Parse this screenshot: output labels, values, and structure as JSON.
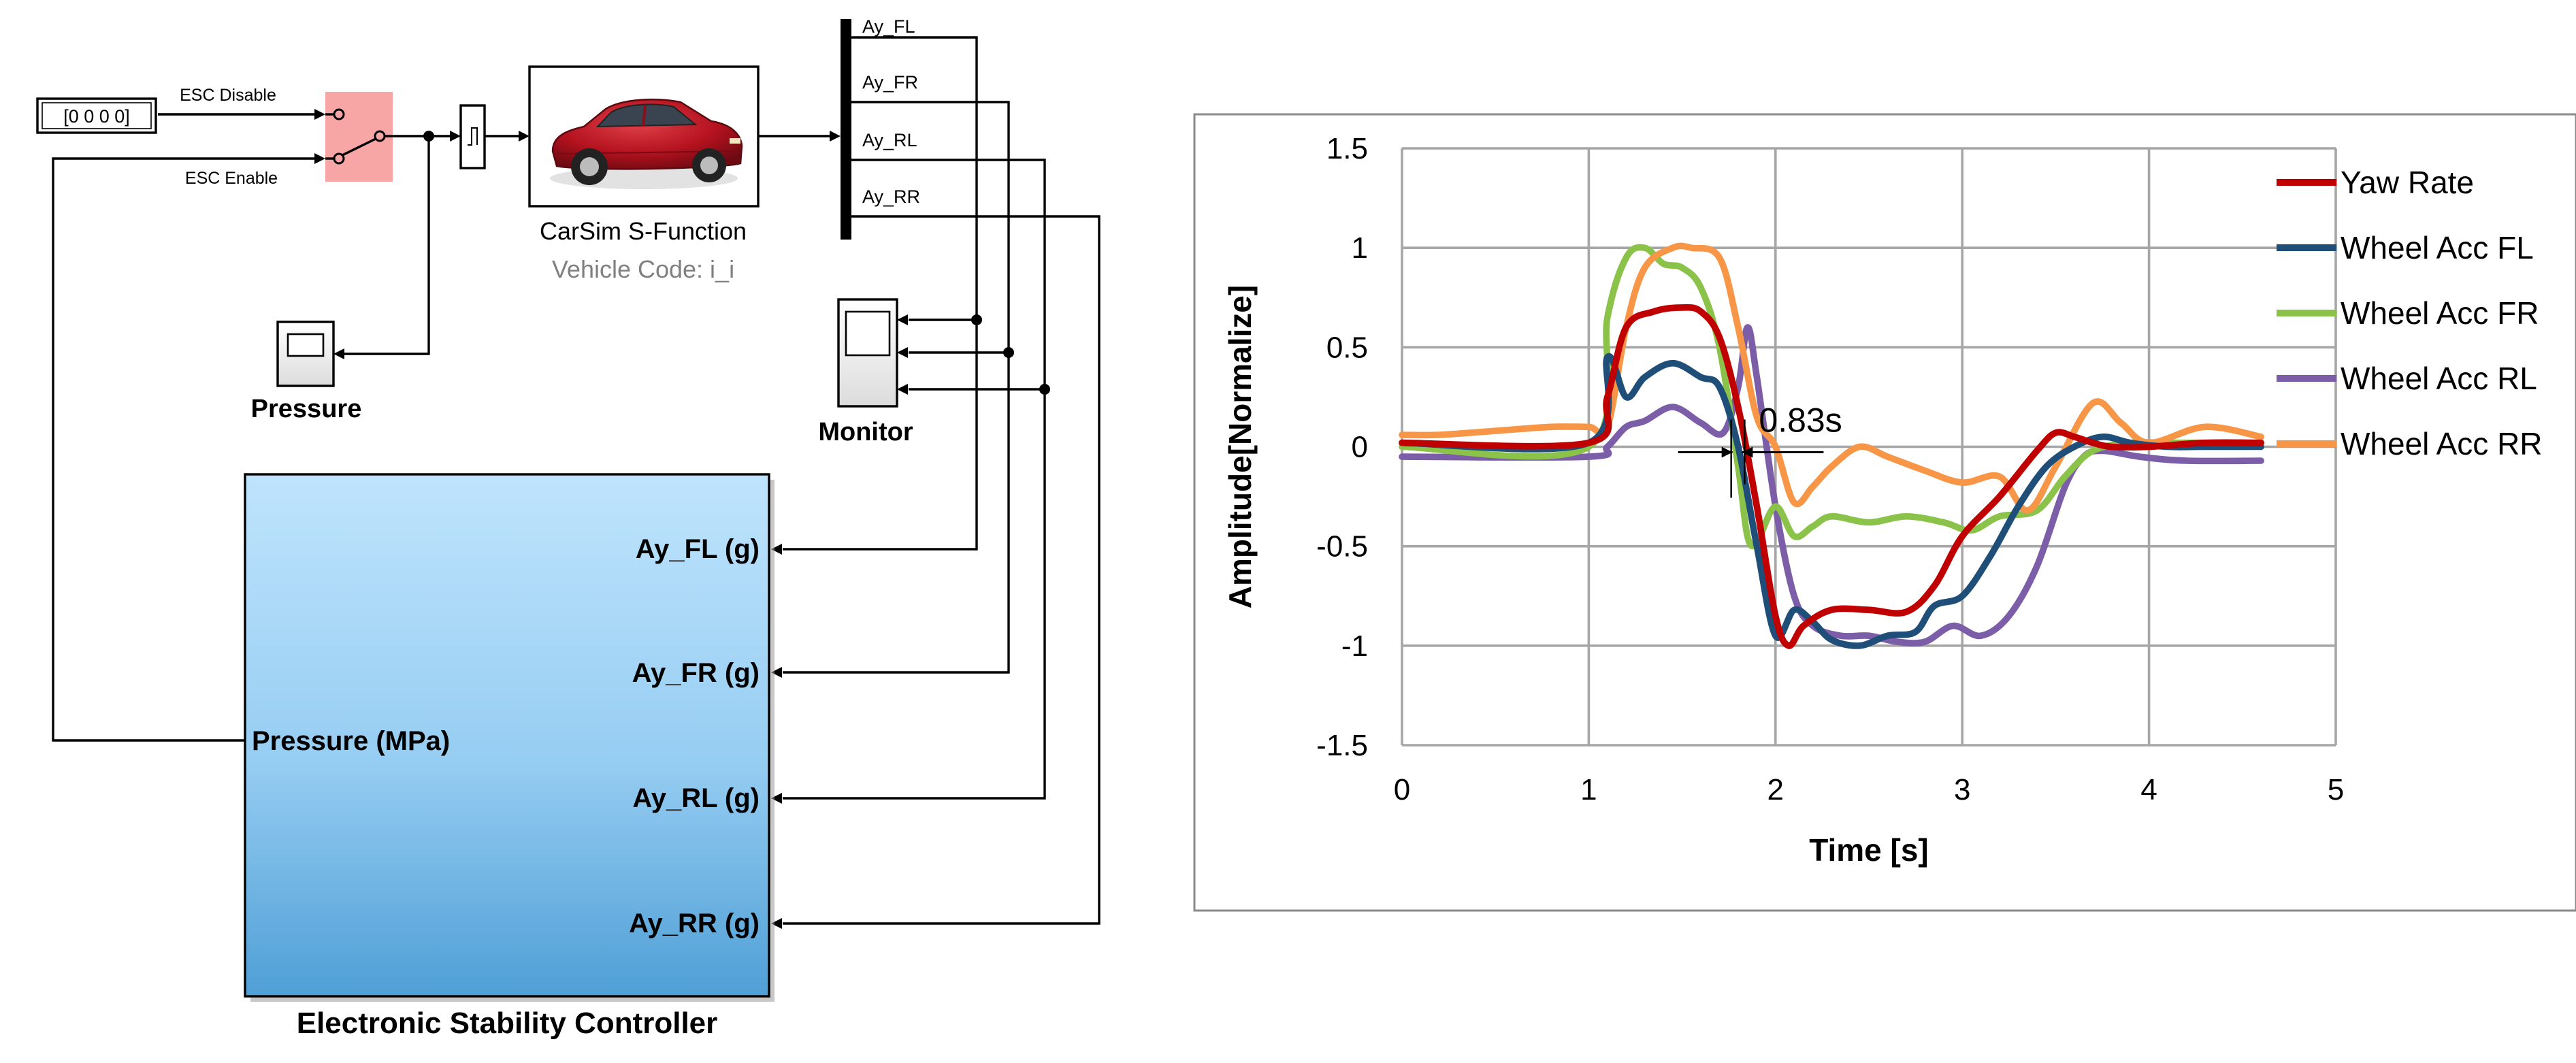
{
  "simulink": {
    "constant_block": {
      "value": "[0 0 0 0]"
    },
    "switch_inputs": {
      "disable_label": "ESC Disable",
      "enable_label": "ESC Enable"
    },
    "carsim_block": {
      "title": "CarSim S-Function",
      "subtitle": "Vehicle Code: i_i"
    },
    "mux_outputs": [
      "Ay_FL",
      "Ay_FR",
      "Ay_RL",
      "Ay_RR"
    ],
    "pressure_scope": {
      "label": "Pressure"
    },
    "monitor_scope": {
      "label": "Monitor"
    },
    "controller": {
      "title": "Electronic Stability Controller",
      "input_ports": [
        "Ay_FL (g)",
        "Ay_FR (g)",
        "Ay_RL (g)",
        "Ay_RR (g)"
      ],
      "output_port": "Pressure (MPa)"
    },
    "colors": {
      "switch_fill": "#f7a5a5",
      "controller_top": "#bfe4fd",
      "controller_bottom": "#4f9fd6",
      "car_body": "#b3121e"
    }
  },
  "chart_data": {
    "type": "line",
    "title": "",
    "xlabel": "Time [s]",
    "ylabel": "Amplitude[Normalize]",
    "xlim": [
      0,
      5
    ],
    "ylim": [
      -1.5,
      1.5
    ],
    "x_ticks": [
      "0",
      "1",
      "2",
      "3",
      "4",
      "5"
    ],
    "y_ticks": [
      "1.5",
      "1",
      "0.5",
      "0",
      "-0.5",
      "-1",
      "-1.5"
    ],
    "grid": true,
    "legend_position": "right",
    "annotation": {
      "text": "0.83s",
      "x_start": 1.77,
      "x_end": 1.82,
      "y": 0
    },
    "series": [
      {
        "name": "Yaw Rate",
        "color": "#c00000",
        "x": [
          0,
          1.0,
          1.1,
          1.2,
          1.35,
          1.5,
          1.6,
          1.7,
          1.8,
          1.9,
          2.0,
          2.07,
          2.15,
          2.3,
          2.5,
          2.7,
          2.85,
          3.0,
          3.2,
          3.4,
          3.5,
          3.6,
          3.7,
          3.8,
          4.0,
          4.3,
          4.6
        ],
        "values": [
          0.02,
          0.02,
          0.25,
          0.6,
          0.68,
          0.7,
          0.68,
          0.55,
          0.2,
          -0.3,
          -0.85,
          -1.0,
          -0.9,
          -0.82,
          -0.82,
          -0.83,
          -0.7,
          -0.45,
          -0.25,
          -0.02,
          0.07,
          0.05,
          0.02,
          0.0,
          0.0,
          0.02,
          0.02
        ]
      },
      {
        "name": "Wheel Acc FL",
        "color": "#1f4e79",
        "x": [
          0,
          1.0,
          1.1,
          1.2,
          1.3,
          1.45,
          1.6,
          1.7,
          1.8,
          1.9,
          2.0,
          2.1,
          2.2,
          2.3,
          2.45,
          2.6,
          2.75,
          2.85,
          3.0,
          3.15,
          3.3,
          3.45,
          3.6,
          3.75,
          3.9,
          4.1,
          4.3,
          4.6
        ],
        "values": [
          0.02,
          0.02,
          0.45,
          0.25,
          0.35,
          0.42,
          0.35,
          0.3,
          0.0,
          -0.5,
          -0.95,
          -0.82,
          -0.88,
          -0.97,
          -1.0,
          -0.95,
          -0.93,
          -0.8,
          -0.75,
          -0.55,
          -0.3,
          -0.1,
          0.0,
          0.05,
          0.02,
          0.0,
          0.0,
          0.0
        ]
      },
      {
        "name": "Wheel Acc FR",
        "color": "#8bc34a",
        "x": [
          0,
          1.0,
          1.1,
          1.2,
          1.3,
          1.4,
          1.5,
          1.6,
          1.7,
          1.8,
          1.85,
          1.9,
          2.0,
          2.1,
          2.2,
          2.3,
          2.5,
          2.7,
          2.9,
          3.05,
          3.2,
          3.4,
          3.55,
          3.7,
          3.9,
          4.1,
          4.3,
          4.6
        ],
        "values": [
          0.0,
          0.0,
          0.65,
          0.95,
          1.0,
          0.92,
          0.9,
          0.8,
          0.5,
          -0.1,
          -0.45,
          -0.48,
          -0.3,
          -0.45,
          -0.4,
          -0.35,
          -0.38,
          -0.35,
          -0.38,
          -0.42,
          -0.35,
          -0.32,
          -0.15,
          -0.02,
          0.02,
          0.02,
          0.02,
          0.02
        ]
      },
      {
        "name": "Wheel Acc RL",
        "color": "#7b5ea7",
        "x": [
          0,
          1.0,
          1.1,
          1.2,
          1.3,
          1.45,
          1.6,
          1.72,
          1.8,
          1.85,
          1.9,
          2.0,
          2.1,
          2.2,
          2.35,
          2.5,
          2.65,
          2.8,
          2.95,
          3.1,
          3.25,
          3.4,
          3.55,
          3.65,
          3.75,
          3.95,
          4.2,
          4.6
        ],
        "values": [
          -0.05,
          -0.05,
          0.0,
          0.1,
          0.13,
          0.2,
          0.12,
          0.07,
          0.3,
          0.6,
          0.35,
          -0.3,
          -0.75,
          -0.9,
          -0.95,
          -0.95,
          -0.98,
          -0.98,
          -0.9,
          -0.95,
          -0.85,
          -0.6,
          -0.2,
          -0.05,
          -0.02,
          -0.05,
          -0.07,
          -0.07
        ]
      },
      {
        "name": "Wheel Acc RR",
        "color": "#f79646",
        "x": [
          0,
          0.2,
          0.5,
          0.8,
          1.0,
          1.1,
          1.2,
          1.3,
          1.45,
          1.55,
          1.7,
          1.8,
          1.9,
          2.0,
          2.1,
          2.2,
          2.3,
          2.45,
          2.6,
          2.8,
          3.0,
          3.2,
          3.35,
          3.5,
          3.7,
          3.85,
          4.0,
          4.3,
          4.6
        ],
        "values": [
          0.06,
          0.06,
          0.08,
          0.1,
          0.1,
          0.1,
          0.6,
          0.9,
          1.0,
          1.0,
          0.95,
          0.6,
          0.15,
          0.0,
          -0.28,
          -0.2,
          -0.1,
          0.0,
          -0.05,
          -0.12,
          -0.18,
          -0.15,
          -0.32,
          -0.1,
          0.22,
          0.12,
          0.02,
          0.1,
          0.05
        ]
      }
    ]
  }
}
